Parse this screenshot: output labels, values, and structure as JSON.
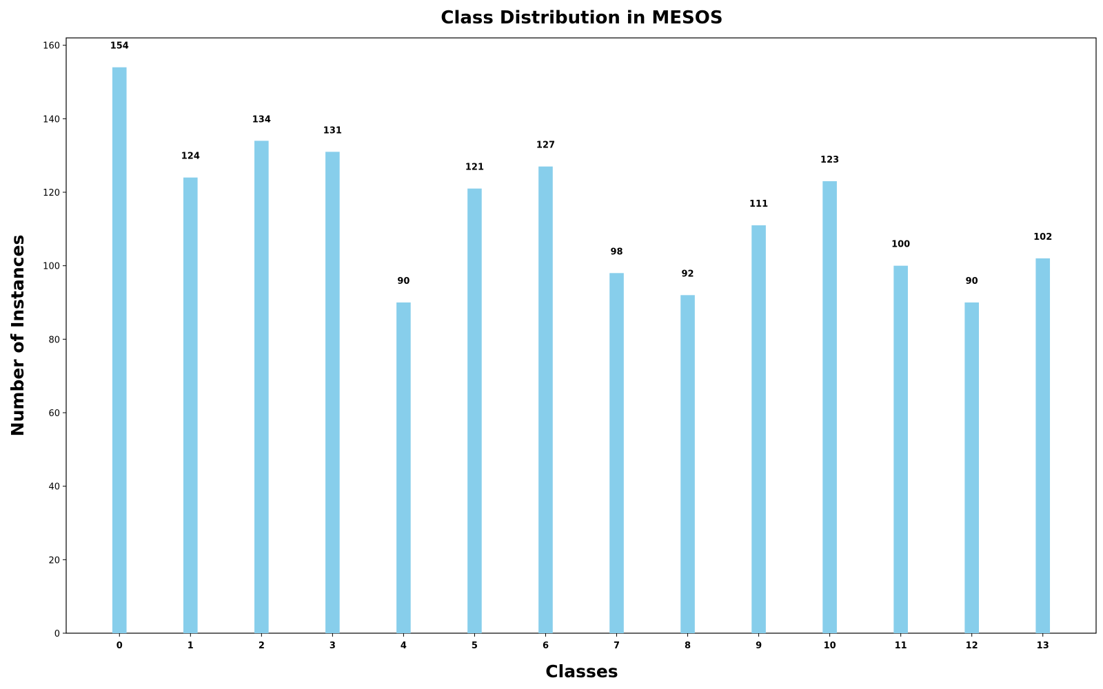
{
  "chart_data": {
    "type": "bar",
    "title": "Class Distribution in MESOS",
    "xlabel": "Classes",
    "ylabel": "Number of Instances",
    "categories": [
      "0",
      "1",
      "2",
      "3",
      "4",
      "5",
      "6",
      "7",
      "8",
      "9",
      "10",
      "11",
      "12",
      "13"
    ],
    "values": [
      154,
      124,
      134,
      131,
      90,
      121,
      127,
      98,
      92,
      111,
      123,
      100,
      90,
      102
    ],
    "ylim": [
      0,
      162
    ],
    "yticks": [
      0,
      20,
      40,
      60,
      80,
      100,
      120,
      140,
      160
    ],
    "grid": false,
    "bar_color": "#87CEEB",
    "show_data_labels": true
  }
}
